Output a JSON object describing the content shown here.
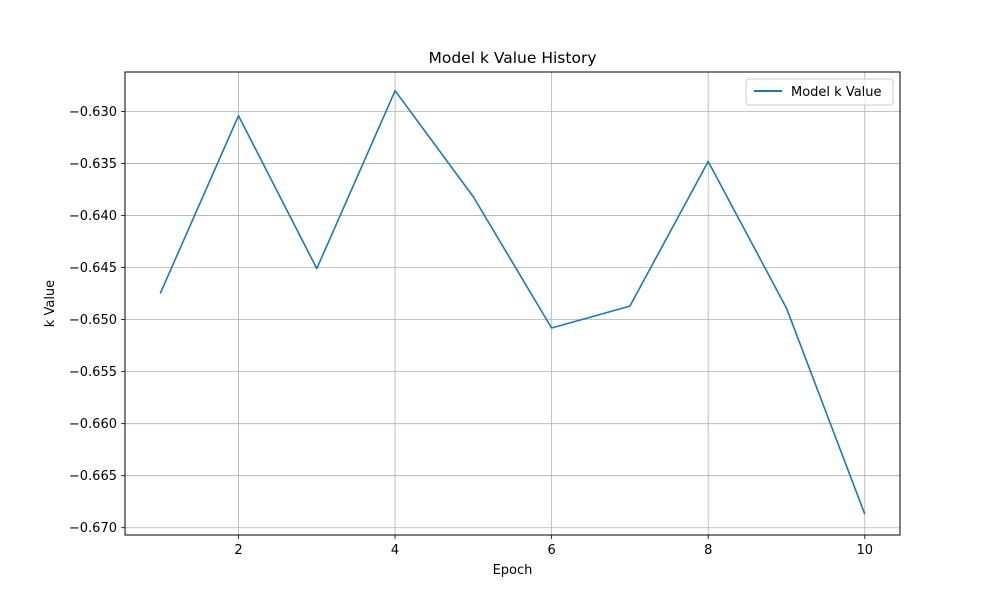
{
  "chart_data": {
    "type": "line",
    "title": "Model k Value History",
    "xlabel": "Epoch",
    "ylabel": "k Value",
    "xlim": [
      0.55,
      10.45
    ],
    "ylim": [
      -0.6707,
      -0.6262
    ],
    "xticks": [
      2,
      4,
      6,
      8,
      10
    ],
    "xtick_labels": [
      "2",
      "4",
      "6",
      "8",
      "10"
    ],
    "yticks": [
      -0.67,
      -0.665,
      -0.66,
      -0.655,
      -0.65,
      -0.645,
      -0.64,
      -0.635,
      -0.63
    ],
    "ytick_labels": [
      "−0.670",
      "−0.665",
      "−0.660",
      "−0.655",
      "−0.650",
      "−0.645",
      "−0.640",
      "−0.635",
      "−0.630"
    ],
    "grid": true,
    "legend_position": "top-right",
    "series": [
      {
        "name": "Model k Value",
        "color": "#1f77b4",
        "x": [
          1,
          2,
          3,
          4,
          5,
          6,
          7,
          8,
          9,
          10
        ],
        "y": [
          -0.6475,
          -0.6304,
          -0.6451,
          -0.628,
          -0.6382,
          -0.6508,
          -0.6487,
          -0.6348,
          -0.6489,
          -0.6687
        ]
      }
    ]
  }
}
